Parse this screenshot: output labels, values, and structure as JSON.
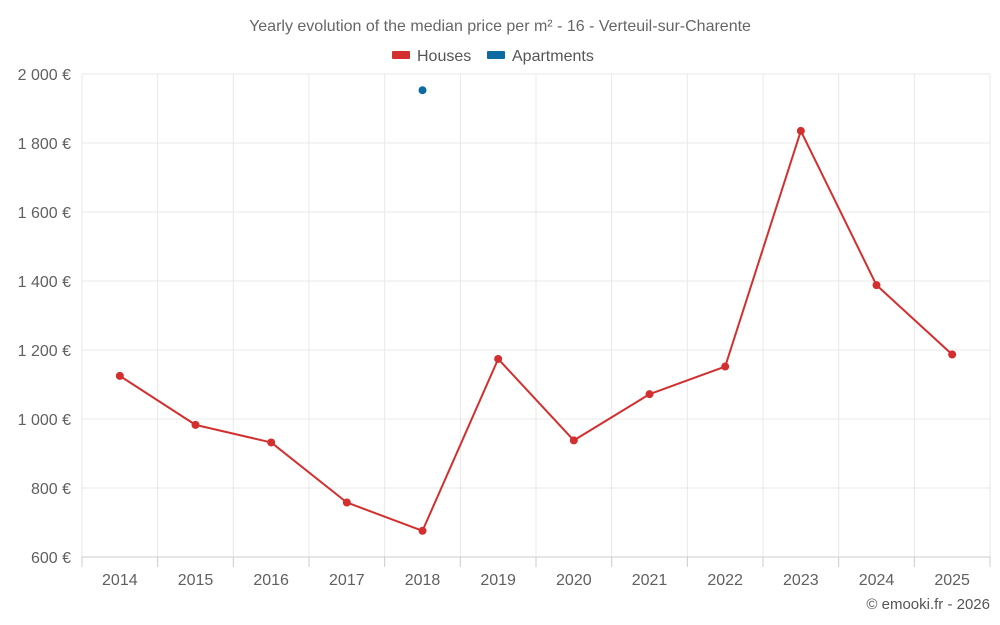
{
  "chart_data": {
    "type": "line",
    "title": "Yearly evolution of the median price per m² - 16 - Verteuil-sur-Charente",
    "categories": [
      "2014",
      "2015",
      "2016",
      "2017",
      "2018",
      "2019",
      "2020",
      "2021",
      "2022",
      "2023",
      "2024",
      "2025"
    ],
    "series": [
      {
        "name": "Houses",
        "color": "#d32f2f",
        "values": [
          1125,
          983,
          932,
          758,
          676,
          1174,
          938,
          1072,
          1152,
          1835,
          1388,
          1187
        ]
      },
      {
        "name": "Apartments",
        "color": "#0b6aa2",
        "values": [
          null,
          null,
          null,
          null,
          1953,
          null,
          null,
          null,
          null,
          null,
          null,
          null
        ]
      }
    ],
    "ylim": [
      600,
      2000
    ],
    "yticks": [
      600,
      800,
      1000,
      1200,
      1400,
      1600,
      1800,
      2000
    ],
    "ytick_labels": [
      "600 €",
      "800 €",
      "1 000 €",
      "1 200 €",
      "1 400 €",
      "1 600 €",
      "1 800 €",
      "2 000 €"
    ],
    "grid": true,
    "legend_position": "top-center",
    "credit": "© emooki.fr - 2026"
  }
}
